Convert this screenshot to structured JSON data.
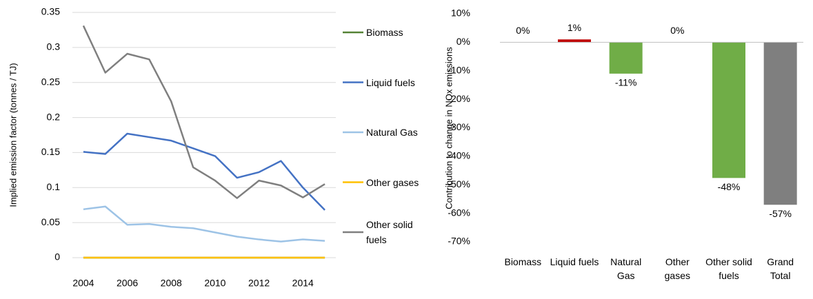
{
  "chart_data": [
    {
      "type": "line",
      "y_label": "Implied emission factor (tonnes / TJ)",
      "x": [
        2004,
        2005,
        2006,
        2007,
        2008,
        2009,
        2010,
        2011,
        2012,
        2013,
        2014,
        2015
      ],
      "xlim": [
        2003.5,
        2015.5
      ],
      "xticks": [
        2004,
        2006,
        2008,
        2010,
        2012,
        2014
      ],
      "ylim": [
        0,
        0.35
      ],
      "yticks": [
        0,
        0.05,
        0.1,
        0.15,
        0.2,
        0.25,
        0.3,
        0.35
      ],
      "grid": true,
      "legend": "right",
      "series": [
        {
          "name": "Biomass",
          "color": "#548235",
          "values": [
            0,
            0,
            0,
            0,
            0,
            0,
            0,
            0,
            0,
            0,
            0,
            0
          ]
        },
        {
          "name": "Liquid fuels",
          "color": "#4472c4",
          "values": [
            0.151,
            0.148,
            0.177,
            0.172,
            0.167,
            0.156,
            0.145,
            0.114,
            0.122,
            0.138,
            0.1,
            0.068
          ]
        },
        {
          "name": "Natural Gas",
          "color": "#9dc3e6",
          "values": [
            0.069,
            0.073,
            0.047,
            0.048,
            0.044,
            0.042,
            0.036,
            0.03,
            0.026,
            0.023,
            0.026,
            0.024
          ]
        },
        {
          "name": "Other gases",
          "color": "#ffc000",
          "values": [
            0,
            0,
            0,
            0,
            0,
            0,
            0,
            0,
            0,
            0,
            0,
            0
          ]
        },
        {
          "name": "Other solid fuels",
          "color": "#7f7f7f",
          "values": [
            0.331,
            0.264,
            0.291,
            0.283,
            0.223,
            0.129,
            0.11,
            0.085,
            0.11,
            0.103,
            0.086,
            0.105
          ]
        }
      ]
    },
    {
      "type": "bar",
      "y_label": "Contribution to change in NOx emissions",
      "categories": [
        "Biomass",
        "Liquid fuels",
        "Natural Gas",
        "Other gases",
        "Other solid fuels",
        "Grand Total"
      ],
      "values": [
        0,
        1,
        -11,
        0,
        -47.6,
        -57
      ],
      "value_labels": [
        "0%",
        "1%",
        "-11%",
        "0%",
        "-48%",
        "-57%"
      ],
      "colors": [
        "#70ad47",
        "#c00000",
        "#70ad47",
        "#70ad47",
        "#70ad47",
        "#7f7f7f"
      ],
      "ylim": [
        -70,
        10
      ],
      "yticks": [
        {
          "value": 10,
          "label": "10%"
        },
        {
          "value": 0,
          "label": "0%"
        },
        {
          "value": -10,
          "label": "-10%"
        },
        {
          "value": -20,
          "label": "-20%"
        },
        {
          "value": -30,
          "label": "-30%"
        },
        {
          "value": -40,
          "label": "-40%"
        },
        {
          "value": -50,
          "label": "-50%"
        },
        {
          "value": -60,
          "label": "-60%"
        },
        {
          "value": -70,
          "label": "-70%"
        }
      ],
      "grid": false
    }
  ]
}
